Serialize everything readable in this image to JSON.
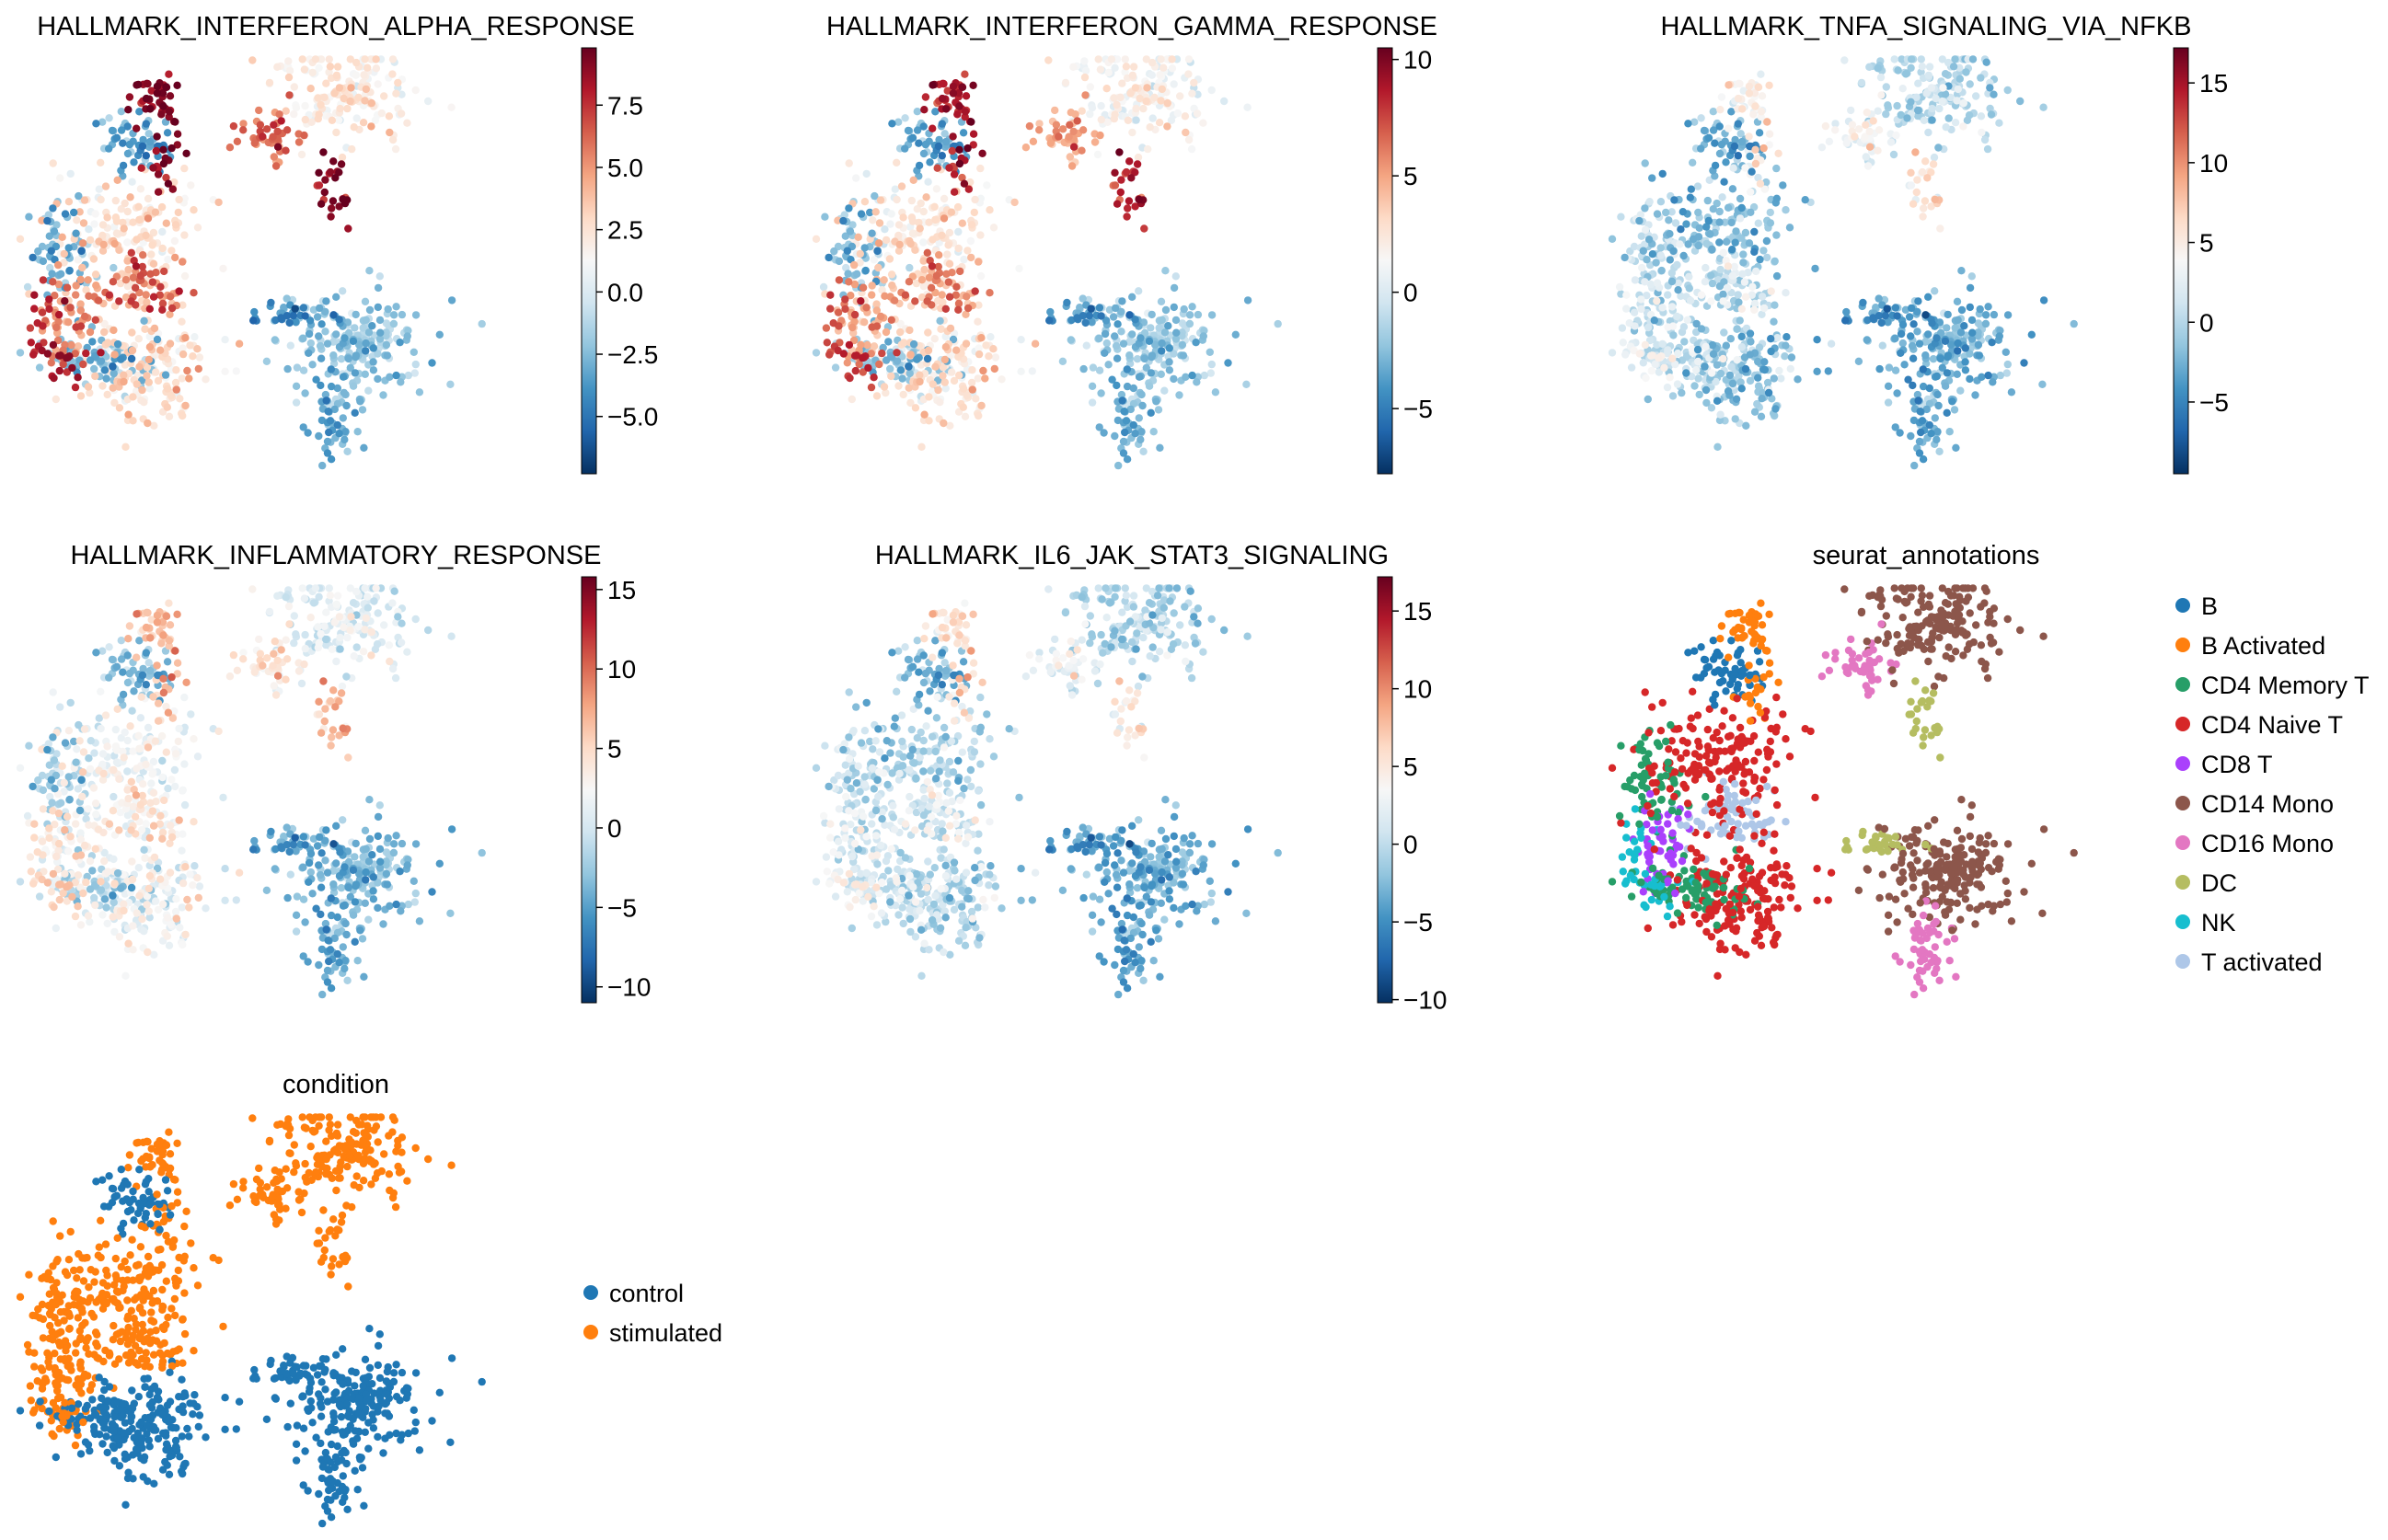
{
  "figure": {
    "background": "#ffffff"
  },
  "chart_data": [
    {
      "type": "scatter",
      "title": "HALLMARK_INTERFERON_ALPHA_RESPONSE",
      "color_kind": "continuous",
      "colormap": "RdBu_r",
      "colorbar": {
        "min": -7.3,
        "max": 9.8,
        "ticks": [
          -5.0,
          -2.5,
          0.0,
          2.5,
          5.0,
          7.5
        ],
        "tick_labels": [
          "−5.0",
          "−2.5",
          "0.0",
          "2.5",
          "5.0",
          "7.5"
        ]
      },
      "cluster_scores": {
        "B": -3.5,
        "B Activated": 9.0,
        "CD4 Memory T": -2.8,
        "CD4 Naive T": 2.6,
        "CD8 T": 5.5,
        "CD14 Mono": -2.0,
        "CD16 Mono": -3.2,
        "DC": -4.2,
        "NK": 8.0,
        "T activated": 6.0,
        "stim_CD14 Mono": 2.0,
        "stim_CD16 Mono": 6.2,
        "stim_DC": 8.8
      }
    },
    {
      "type": "scatter",
      "title": "HALLMARK_INTERFERON_GAMMA_RESPONSE",
      "color_kind": "continuous",
      "colormap": "RdBu_r",
      "colorbar": {
        "min": -7.8,
        "max": 10.5,
        "ticks": [
          -5,
          0,
          5,
          10
        ],
        "tick_labels": [
          "−5",
          "0",
          "5",
          "10"
        ]
      },
      "cluster_scores": {
        "B": -3.5,
        "B Activated": 8.5,
        "CD4 Memory T": -2.5,
        "CD4 Naive T": 2.5,
        "CD8 T": 5.0,
        "CD14 Mono": -2.0,
        "CD16 Mono": -3.0,
        "DC": -4.0,
        "NK": 7.5,
        "T activated": 5.5,
        "stim_CD14 Mono": 1.5,
        "stim_CD16 Mono": 5.0,
        "stim_DC": 8.0
      }
    },
    {
      "type": "scatter",
      "title": "HALLMARK_TNFA_SIGNALING_VIA_NFKB",
      "color_kind": "continuous",
      "colormap": "RdBu_r",
      "colorbar": {
        "min": -9.5,
        "max": 17.2,
        "ticks": [
          -5,
          0,
          5,
          10,
          15
        ],
        "tick_labels": [
          "−5",
          "0",
          "5",
          "10",
          "15"
        ]
      },
      "cluster_scores": {
        "B": -3.0,
        "B Activated": 4.0,
        "CD4 Memory T": 0.5,
        "CD4 Naive T": -1.5,
        "CD8 T": 1.0,
        "CD14 Mono": -2.5,
        "CD16 Mono": -3.0,
        "DC": -4.0,
        "NK": 3.0,
        "T activated": 1.5,
        "stim_CD14 Mono": 0.2,
        "stim_CD16 Mono": 3.5,
        "stim_DC": 5.0
      }
    },
    {
      "type": "scatter",
      "title": "HALLMARK_INFLAMMATORY_RESPONSE",
      "color_kind": "continuous",
      "colormap": "RdBu_r",
      "colorbar": {
        "min": -11.0,
        "max": 15.8,
        "ticks": [
          -10,
          -5,
          0,
          5,
          10,
          15
        ],
        "tick_labels": [
          "−10",
          "−5",
          "0",
          "5",
          "10",
          "15"
        ]
      },
      "cluster_scores": {
        "B": -3.5,
        "B Activated": 6.0,
        "CD4 Memory T": -2.0,
        "CD4 Naive T": 2.0,
        "CD8 T": 3.5,
        "CD14 Mono": -3.5,
        "CD16 Mono": -4.5,
        "DC": -5.0,
        "NK": 5.0,
        "T activated": 3.5,
        "stim_CD14 Mono": 0.8,
        "stim_CD16 Mono": 4.0,
        "stim_DC": 6.0
      }
    },
    {
      "type": "scatter",
      "title": "HALLMARK_IL6_JAK_STAT3_SIGNALING",
      "color_kind": "continuous",
      "colormap": "RdBu_r",
      "colorbar": {
        "min": -10.2,
        "max": 17.2,
        "ticks": [
          -10,
          -5,
          0,
          5,
          10,
          15
        ],
        "tick_labels": [
          "−10",
          "−5",
          "0",
          "5",
          "10",
          "15"
        ]
      },
      "cluster_scores": {
        "B": -3.0,
        "B Activated": 5.0,
        "CD4 Memory T": 0.5,
        "CD4 Naive T": -0.5,
        "CD8 T": 1.5,
        "CD14 Mono": -3.0,
        "CD16 Mono": -4.0,
        "DC": -4.5,
        "NK": 3.5,
        "T activated": 2.0,
        "stim_CD14 Mono": -0.5,
        "stim_CD16 Mono": 2.5,
        "stim_DC": 4.0
      }
    },
    {
      "type": "scatter",
      "title": "seurat_annotations",
      "color_kind": "categorical",
      "legend": [
        {
          "name": "B",
          "color": "#1f77b4"
        },
        {
          "name": "B Activated",
          "color": "#ff7f0e"
        },
        {
          "name": "CD4 Memory T",
          "color": "#279e68"
        },
        {
          "name": "CD4 Naive T",
          "color": "#d62728"
        },
        {
          "name": "CD8 T",
          "color": "#aa40fc"
        },
        {
          "name": "CD14 Mono",
          "color": "#8c564b"
        },
        {
          "name": "CD16 Mono",
          "color": "#e377c2"
        },
        {
          "name": "DC",
          "color": "#b5bd61"
        },
        {
          "name": "NK",
          "color": "#17becf"
        },
        {
          "name": "T activated",
          "color": "#aec7e8"
        }
      ],
      "legend_placement": "right"
    },
    {
      "type": "scatter",
      "title": "condition",
      "color_kind": "categorical",
      "legend": [
        {
          "name": "control",
          "color": "#1f77b4"
        },
        {
          "name": "stimulated",
          "color": "#ff7f0e"
        }
      ],
      "legend_placement": "right"
    }
  ]
}
